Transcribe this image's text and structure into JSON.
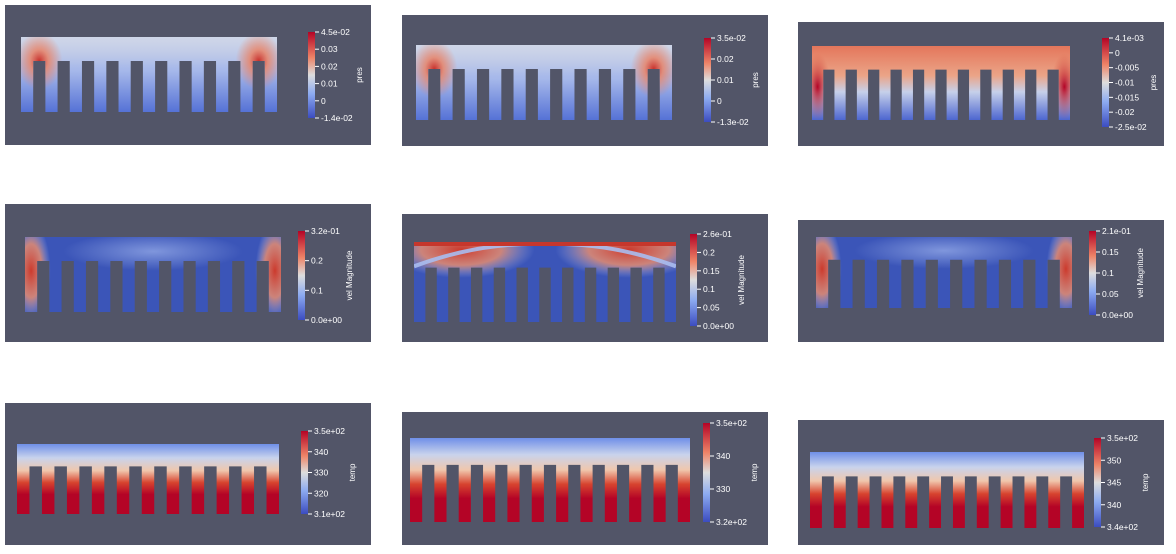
{
  "colormap": {
    "low": "#3b4cc0",
    "mid": "#dddddd",
    "high": "#b40426"
  },
  "panels": [
    {
      "id": "r1c1",
      "field": "pres",
      "ticks": [
        "4.5e-02",
        "0.03",
        "0.02",
        "0.01",
        "0",
        "-1.4e-02"
      ],
      "pattern": "pressure-sides"
    },
    {
      "id": "r1c2",
      "field": "pres",
      "ticks": [
        "3.5e-02",
        "0.02",
        "0.01",
        "0",
        "-1.3e-02"
      ],
      "pattern": "pressure-sides"
    },
    {
      "id": "r1c3",
      "field": "pres",
      "ticks": [
        "4.1e-03",
        "0",
        "-0.005",
        "-0.01",
        "-0.015",
        "-0.02",
        "-2.5e-02"
      ],
      "pattern": "pressure-high"
    },
    {
      "id": "r2c1",
      "field": "vel Magnitude",
      "ticks": [
        "3.2e-01",
        "0.2",
        "0.1",
        "0.0e+00"
      ],
      "pattern": "velocity-corners"
    },
    {
      "id": "r2c2",
      "field": "vel Magnitude",
      "ticks": [
        "2.6e-01",
        "0.2",
        "0.15",
        "0.1",
        "0.05",
        "0.0e+00"
      ],
      "pattern": "velocity-arc"
    },
    {
      "id": "r2c3",
      "field": "vel Magnitude",
      "ticks": [
        "2.1e-01",
        "0.15",
        "0.1",
        "0.05",
        "0.0e+00"
      ],
      "pattern": "velocity-corners"
    },
    {
      "id": "r3c1",
      "field": "temp",
      "ticks": [
        "3.5e+02",
        "340",
        "330",
        "320",
        "3.1e+02"
      ],
      "pattern": "temperature"
    },
    {
      "id": "r3c2",
      "field": "temp",
      "ticks": [
        "3.5e+02",
        "340",
        "330",
        "3.2e+02"
      ],
      "pattern": "temperature"
    },
    {
      "id": "r3c3",
      "field": "temp",
      "ticks": [
        "3.5e+02",
        "350",
        "345",
        "340",
        "3.4e+02"
      ],
      "pattern": "temperature"
    }
  ]
}
